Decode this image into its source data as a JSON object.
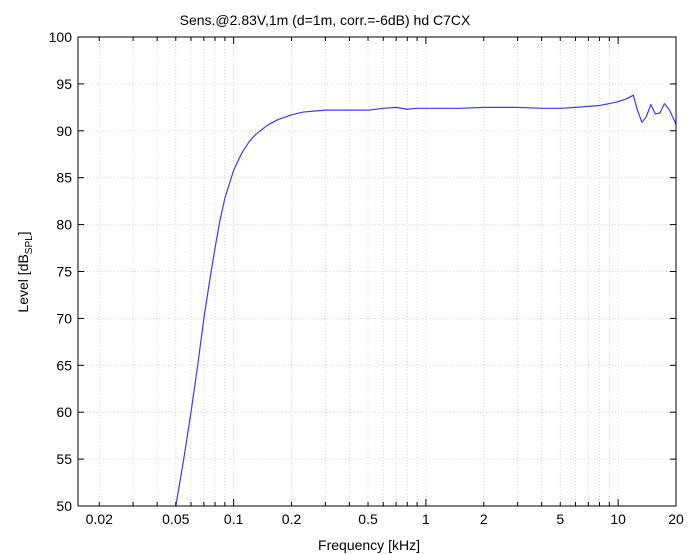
{
  "chart_data": {
    "type": "line",
    "title": "Sens.@2.83V,1m  (d=1m, corr.=-6dB)    hd C7CX",
    "xlabel": "Frequency [kHz]",
    "ylabel_main": "Level [dB",
    "ylabel_sub": "SPL",
    "ylabel_close": "]",
    "x_scale": "log",
    "xlim": [
      0.0155,
      20
    ],
    "ylim": [
      50,
      100
    ],
    "x_ticks": [
      0.02,
      0.05,
      0.1,
      0.2,
      0.5,
      1,
      2,
      5,
      10,
      20
    ],
    "x_tick_labels": [
      "0.02",
      "0.05",
      "0.1",
      "0.2",
      "0.5",
      "1",
      "2",
      "5",
      "10",
      "20"
    ],
    "y_ticks": [
      50,
      55,
      60,
      65,
      70,
      75,
      80,
      85,
      90,
      95,
      100
    ],
    "y_tick_labels": [
      "50",
      "55",
      "60",
      "65",
      "70",
      "75",
      "80",
      "85",
      "90",
      "95",
      "100"
    ],
    "grid": true,
    "line_color": "#3b3bff",
    "series": [
      {
        "x": [
          0.05,
          0.055,
          0.06,
          0.065,
          0.07,
          0.075,
          0.08,
          0.085,
          0.09,
          0.1,
          0.11,
          0.12,
          0.13,
          0.15,
          0.17,
          0.2,
          0.23,
          0.26,
          0.3,
          0.35,
          0.4,
          0.5,
          0.6,
          0.7,
          0.8,
          0.9,
          1.0,
          1.2,
          1.5,
          2.0,
          2.5,
          3.0,
          4.0,
          5.0,
          6.0,
          7.0,
          8.0,
          9.0,
          10.0,
          11.0,
          12.0,
          12.6,
          13.3,
          14.0,
          14.8,
          15.6,
          16.5,
          17.4,
          18.4,
          19.3,
          20.0
        ],
        "y": [
          50.0,
          55.0,
          60.0,
          65.0,
          70.0,
          74.0,
          77.5,
          80.5,
          82.8,
          85.8,
          87.6,
          88.8,
          89.6,
          90.6,
          91.2,
          91.7,
          92.0,
          92.1,
          92.2,
          92.2,
          92.2,
          92.2,
          92.4,
          92.5,
          92.3,
          92.4,
          92.4,
          92.4,
          92.4,
          92.5,
          92.5,
          92.5,
          92.4,
          92.4,
          92.5,
          92.6,
          92.7,
          92.9,
          93.1,
          93.4,
          93.8,
          92.2,
          90.9,
          91.5,
          92.8,
          91.8,
          91.9,
          92.9,
          92.3,
          91.4,
          90.7
        ]
      }
    ]
  }
}
